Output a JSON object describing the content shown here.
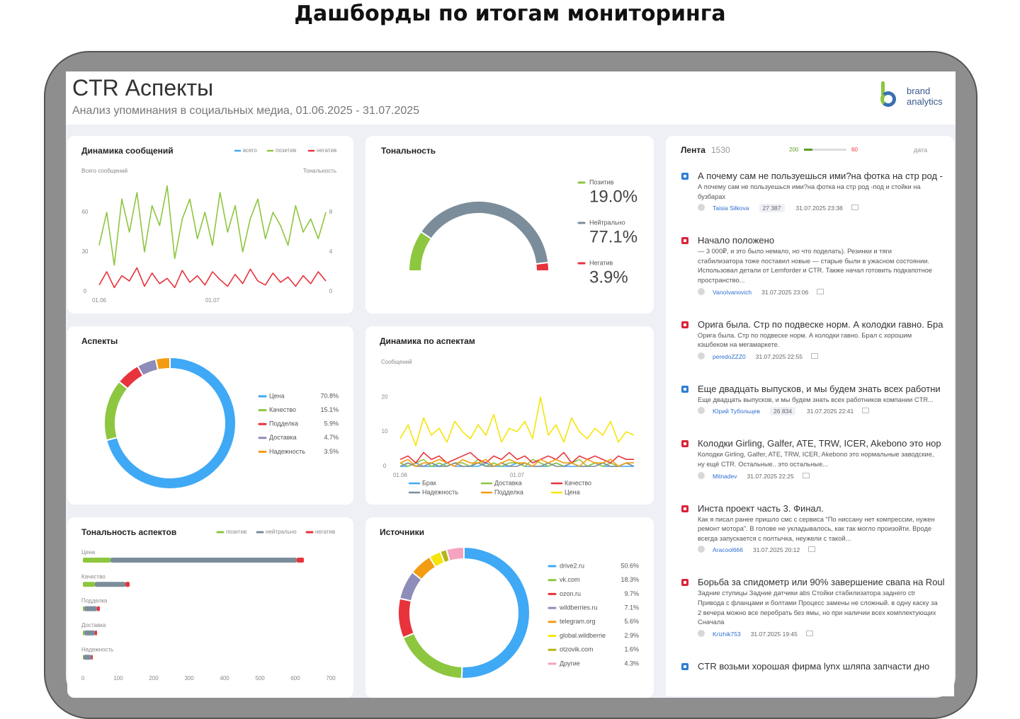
{
  "header": {
    "page_title": "Дашборды по итогам мониторинга",
    "title": "CTR Аспекты",
    "subtitle": "Анализ упоминания в социальных медиа, 01.06.2025 - 31.07.2025",
    "logo": [
      "brand",
      "analytics"
    ]
  },
  "chart_data": [
    {
      "type": "line",
      "title": "Динамика сообщений",
      "y_label": "Всего сообщений",
      "y2_label": "Тональность",
      "categories": [
        "01.06",
        null,
        null,
        null,
        null,
        null,
        null,
        null,
        null,
        null,
        null,
        null,
        null,
        null,
        null,
        "01.07",
        null,
        null,
        null,
        null,
        null,
        null,
        null,
        null,
        null,
        null,
        null,
        null,
        null,
        null,
        null
      ],
      "ylim": [
        0,
        90
      ],
      "yticks": [
        0,
        30,
        60
      ],
      "y2lim": [
        0,
        12
      ],
      "y2ticks": [
        0,
        4,
        8
      ],
      "series": [
        {
          "name": "всего",
          "color": "#3fa9f5",
          "values": [
            null,
            null,
            null,
            null,
            null,
            null,
            null,
            null,
            null,
            null,
            null,
            null,
            null,
            null,
            null,
            null,
            null,
            null,
            null,
            null,
            null,
            null,
            null,
            null,
            null,
            null,
            null,
            null,
            null,
            null,
            null
          ]
        },
        {
          "name": "позитив",
          "color": "#8dc63f",
          "values": [
            35,
            60,
            20,
            70,
            45,
            75,
            30,
            65,
            50,
            80,
            25,
            55,
            70,
            40,
            60,
            35,
            75,
            45,
            65,
            30,
            55,
            70,
            40,
            60,
            50,
            35,
            65,
            45,
            55,
            40,
            60
          ]
        },
        {
          "name": "негатив",
          "color": "#e8323c",
          "values": [
            5,
            15,
            3,
            12,
            8,
            18,
            4,
            14,
            6,
            10,
            3,
            16,
            7,
            12,
            5,
            15,
            9,
            4,
            13,
            6,
            17,
            8,
            5,
            14,
            7,
            11,
            4,
            12,
            6,
            15,
            8
          ]
        }
      ]
    },
    {
      "type": "half-donut",
      "title": "Тональность",
      "categories": [
        "Позитив",
        "Нейтрально",
        "Негатив"
      ],
      "values": [
        19.0,
        77.1,
        3.9
      ],
      "value_labels": [
        "19.0%",
        "77.1%",
        "3.9%"
      ],
      "colors": [
        "#8dc63f",
        "#7b8d9a",
        "#e8323c"
      ]
    },
    {
      "type": "donut",
      "title": "Аспекты",
      "categories": [
        "Цена",
        "Качество",
        "Подделка",
        "Доставка",
        "Надежность"
      ],
      "values": [
        70.8,
        15.1,
        5.9,
        4.7,
        3.5
      ],
      "value_labels": [
        "70.8%",
        "15.1%",
        "5.9%",
        "4.7%",
        "3.5%"
      ],
      "colors": [
        "#3fa9f5",
        "#8dc63f",
        "#e8323c",
        "#8e8cb8",
        "#f39c12"
      ]
    },
    {
      "type": "line",
      "title": "Динамика по аспектам",
      "y_label": "Сообщений",
      "categories": [
        "01.06",
        null,
        null,
        null,
        null,
        null,
        null,
        null,
        null,
        null,
        null,
        null,
        null,
        null,
        null,
        "01.07",
        null,
        null,
        null,
        null,
        null,
        null,
        null,
        null,
        null,
        null,
        null,
        null,
        null,
        null,
        null
      ],
      "ylim": [
        0,
        28
      ],
      "yticks": [
        0,
        10,
        20
      ],
      "series": [
        {
          "name": "Брак",
          "color": "#3fa9f5",
          "values": [
            0,
            0,
            1,
            0,
            0,
            0,
            1,
            0,
            0,
            0,
            0,
            1,
            0,
            0,
            0,
            1,
            0,
            0,
            0,
            0,
            1,
            0,
            0,
            0,
            0,
            1,
            0,
            0,
            0,
            0,
            0
          ]
        },
        {
          "name": "Доставка",
          "color": "#8dc63f",
          "values": [
            1,
            0,
            1,
            2,
            0,
            1,
            0,
            1,
            1,
            0,
            2,
            0,
            1,
            0,
            1,
            1,
            0,
            2,
            1,
            0,
            1,
            0,
            1,
            2,
            0,
            1,
            0,
            1,
            0,
            1,
            0
          ]
        },
        {
          "name": "Качество",
          "color": "#e8323c",
          "values": [
            2,
            3,
            1,
            4,
            2,
            3,
            1,
            2,
            3,
            4,
            2,
            1,
            3,
            2,
            4,
            2,
            3,
            1,
            2,
            3,
            2,
            4,
            1,
            3,
            2,
            3,
            2,
            1,
            3,
            2,
            2
          ]
        },
        {
          "name": "Надежность",
          "color": "#7b8d9a",
          "values": [
            0,
            1,
            0,
            0,
            1,
            0,
            0,
            1,
            0,
            0,
            1,
            0,
            0,
            1,
            0,
            0,
            1,
            0,
            0,
            1,
            0,
            0,
            1,
            0,
            0,
            0,
            1,
            0,
            0,
            1,
            0
          ]
        },
        {
          "name": "Подделка",
          "color": "#f39c12",
          "values": [
            1,
            2,
            0,
            1,
            1,
            2,
            1,
            0,
            2,
            1,
            1,
            2,
            0,
            1,
            2,
            1,
            1,
            0,
            2,
            1,
            2,
            1,
            1,
            0,
            2,
            1,
            1,
            2,
            0,
            1,
            1
          ]
        },
        {
          "name": "Цена",
          "color": "#f5e50a",
          "values": [
            8,
            12,
            6,
            14,
            9,
            11,
            7,
            13,
            10,
            8,
            12,
            9,
            15,
            7,
            11,
            10,
            13,
            8,
            20,
            9,
            12,
            7,
            14,
            10,
            8,
            11,
            9,
            13,
            7,
            10,
            9
          ]
        }
      ]
    },
    {
      "type": "stacked-hbar",
      "title": "Тональность аспектов",
      "categories": [
        "Цена",
        "Качество",
        "Подделка",
        "Доставка",
        "Надежность"
      ],
      "xlim": [
        0,
        700
      ],
      "xticks": [
        0,
        100,
        200,
        300,
        400,
        500,
        600,
        700
      ],
      "series": [
        {
          "name": "позитив",
          "color": "#8dc63f",
          "values": [
            78,
            34,
            4,
            4,
            2
          ]
        },
        {
          "name": "нейтрально",
          "color": "#7b8d9a",
          "values": [
            526,
            86,
            36,
            30,
            22
          ]
        },
        {
          "name": "негатив",
          "color": "#e8323c",
          "values": [
            20,
            12,
            8,
            6,
            4
          ]
        }
      ]
    },
    {
      "type": "donut",
      "title": "Источники",
      "categories": [
        "drive2.ru",
        "vk.com",
        "ozon.ru",
        "wildberries.ru",
        "telegram.org",
        "global.wildberrie",
        "otzovik.com",
        "Другие"
      ],
      "values": [
        50.6,
        18.3,
        9.7,
        7.1,
        5.6,
        2.9,
        1.6,
        4.3
      ],
      "value_labels": [
        "50.6%",
        "18.3%",
        "9.7%",
        "7.1%",
        "5.6%",
        "2.9%",
        "1.6%",
        "4.3%"
      ],
      "colors": [
        "#3fa9f5",
        "#8dc63f",
        "#e8323c",
        "#8e8cb8",
        "#f39c12",
        "#f5e50a",
        "#b5b515",
        "#f4a3c0"
      ]
    }
  ],
  "feed": {
    "title": "Лента",
    "count": 1530,
    "range": [
      200,
      60
    ],
    "sort": "дата",
    "posts": [
      {
        "source": "vk",
        "title": "А почему сам не пользуешься ими?на фотка на стр род -",
        "text": "А почему сам не пользуешься ими?на фотка на стр род -под и стойки на бузбарах",
        "author": "Taisia Silkova",
        "reach": "27 387",
        "date": "31.07.2025 23:38"
      },
      {
        "source": "drive2",
        "title": "Начало положено",
        "text": "— 3 000₽, и это было немало, но что поделать). Резинки и тяги стабилизатора тоже поставил новые — старые были в ужасном состоянии. Использовал детали от Lemforder и CTR. Также начал готовить подкапотное пространство...",
        "author": "VanoIvanovich",
        "date": "31.07.2025 23:06"
      },
      {
        "source": "drive2",
        "title": "Орига была. Стр по подвеске норм. А колодки гавно. Бра",
        "text": "Орига была. Стр по подвеске норм. А колодки гавно. Брал с хорошим кэшбеком на мегамаркете.",
        "author": "peredoZZZ0",
        "date": "31.07.2025 22:55"
      },
      {
        "source": "vk",
        "title": "Еще двадцать выпусков, и мы будем знать всех работни",
        "text": "Еще двадцать выпусков, и мы будем знать всех работников компании CTR...",
        "author": "Юрий Тубольцев",
        "reach": "26 834",
        "date": "31.07.2025 22:41"
      },
      {
        "source": "drive2",
        "title": "Колодки Girling, Galfer, ATE, TRW, ICER, Akebono это нор",
        "text": "Колодки Girling, Galfer, ATE, TRW, ICER, Akebono это нормальные заводские, ну ещё CTR. Остальные.. это остальные...",
        "author": "Mitnadev",
        "date": "31.07.2025 22:25"
      },
      {
        "source": "drive2",
        "title": "Инста проект часть 3. Финал.",
        "text": "Как я писал ранее пришло смс с сервиса \"По ниссану нет компрессии, нужен ремонт мотора\". В голове не укладывалось, как так могло произойти. Вроде всегда запускается с полтычка, неужели с такой...",
        "author": "Aracool666",
        "date": "31.07.2025 20:12"
      },
      {
        "source": "drive2",
        "title": "Борьба за спидометр или 90% завершение свапа на Roul",
        "text": "Задние ступицы Задние датчики abs Стойки стабилизатора заднего ctr Привода с фланцами и болтами Процесс замены не сложный. в одну каску за 2 вечера можно все перебрать без ямы, но при наличии всех комплектующих Сначала",
        "author": "Krizhik753",
        "date": "31.07.2025 19:45"
      },
      {
        "source": "vk",
        "title": "CTR возьми хорошая фирма lynx шляпа запчасти дно"
      }
    ]
  }
}
